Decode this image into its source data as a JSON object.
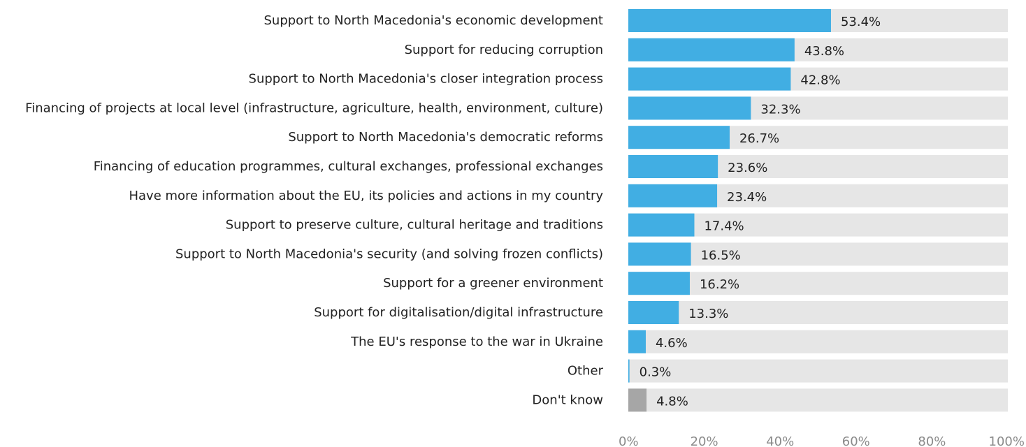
{
  "chart_data": {
    "type": "bar",
    "orientation": "horizontal",
    "categories": [
      "Support to North Macedonia's economic development",
      "Support for reducing corruption",
      "Support to North Macedonia's closer integration process",
      "Financing of projects at local level (infrastructure, agriculture, health, environment, culture)",
      "Support to North Macedonia's democratic reforms",
      "Financing of education programmes, cultural exchanges, professional exchanges",
      "Have more information about the EU, its policies and actions in my country",
      "Support to preserve culture, cultural heritage and traditions",
      "Support to North Macedonia's security (and solving frozen conflicts)",
      "Support for a greener environment",
      "Support for digitalisation/digital infrastructure",
      "The EU's response to the war in Ukraine",
      "Other",
      "Don't know"
    ],
    "values": [
      53.4,
      43.8,
      42.8,
      32.3,
      26.7,
      23.6,
      23.4,
      17.4,
      16.5,
      16.2,
      13.3,
      4.6,
      0.3,
      4.8
    ],
    "value_labels": [
      "53.4%",
      "43.8%",
      "42.8%",
      "32.3%",
      "26.7%",
      "23.6%",
      "23.4%",
      "17.4%",
      "16.5%",
      "16.2%",
      "13.3%",
      "4.6%",
      "0.3%",
      "4.8%"
    ],
    "xlim": [
      0,
      100
    ],
    "x_ticks": [
      0,
      20,
      40,
      60,
      80,
      100
    ],
    "x_tick_labels": [
      "0%",
      "20%",
      "40%",
      "60%",
      "80%",
      "100%"
    ],
    "grid": false,
    "colors": {
      "bar": "#41AEE3",
      "bar_dont_know": "#A6A6A6",
      "track": "#E6E6E6"
    }
  }
}
